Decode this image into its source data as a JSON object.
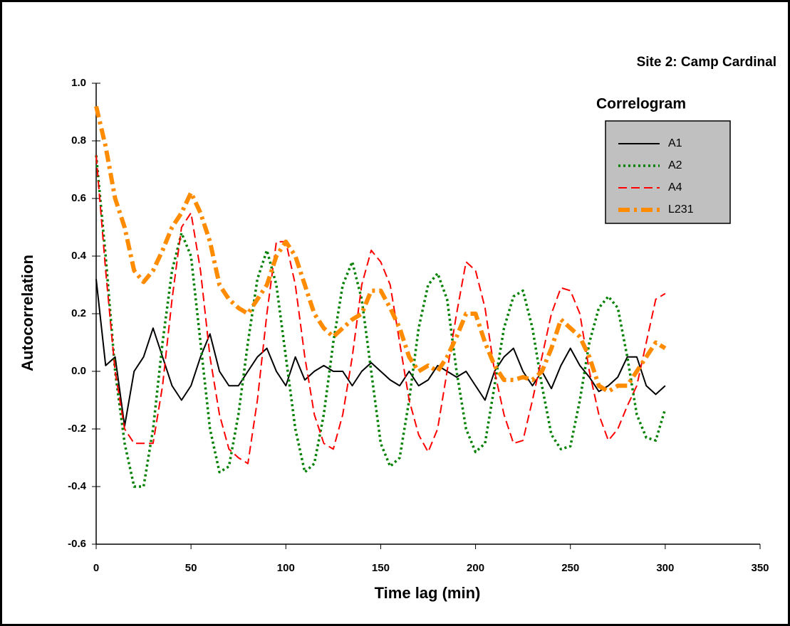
{
  "chart_data": {
    "type": "line",
    "title": "Site 2: Camp Cardinal",
    "legend_title": "Correlogram",
    "x_label": "Time lag (min)",
    "y_label": "Autocorrelation",
    "legend": "upper right",
    "xlim": [
      0,
      350
    ],
    "xticks": [
      0,
      50,
      100,
      150,
      200,
      250,
      300,
      350
    ],
    "ylim": [
      -0.6,
      1.0
    ],
    "yticks": [
      {
        "value": -0.6,
        "label": "-0.6"
      },
      {
        "value": -0.4,
        "label": "-0.4"
      },
      {
        "value": -0.2,
        "label": "-0.2"
      },
      {
        "value": 0,
        "label": "0.0"
      },
      {
        "value": 0.2,
        "label": "0.2"
      },
      {
        "value": 0.4,
        "label": "0.4"
      },
      {
        "value": 0.6,
        "label": "0.6"
      },
      {
        "value": 0.8,
        "label": "0.8"
      },
      {
        "value": 1.0,
        "label": "1.0"
      }
    ],
    "x": [
      0,
      5,
      10,
      15,
      20,
      25,
      30,
      35,
      40,
      45,
      50,
      55,
      60,
      65,
      70,
      75,
      80,
      85,
      90,
      95,
      100,
      105,
      110,
      115,
      120,
      125,
      130,
      135,
      140,
      145,
      150,
      155,
      160,
      165,
      170,
      175,
      180,
      185,
      190,
      195,
      200,
      205,
      210,
      215,
      220,
      225,
      230,
      235,
      240,
      245,
      250,
      255,
      260,
      265,
      270,
      275,
      280,
      285,
      290,
      295,
      300
    ],
    "series": [
      {
        "name": "A1",
        "color": "#000000",
        "dash": "solid",
        "values": [
          0.32,
          0.02,
          0.05,
          -0.19,
          0.0,
          0.05,
          0.15,
          0.05,
          -0.05,
          -0.1,
          -0.05,
          0.05,
          0.13,
          0.0,
          -0.05,
          -0.05,
          0.0,
          0.05,
          0.08,
          0.0,
          -0.05,
          0.05,
          -0.03,
          0.0,
          0.02,
          0.0,
          0.0,
          -0.05,
          0.0,
          0.03,
          0.0,
          -0.03,
          -0.05,
          0.0,
          -0.05,
          -0.03,
          0.02,
          0.0,
          -0.02,
          0.0,
          -0.05,
          -0.1,
          0.0,
          0.05,
          0.08,
          0.0,
          -0.05,
          0.0,
          -0.06,
          0.02,
          0.08,
          0.02,
          -0.02,
          -0.07,
          -0.05,
          -0.02,
          0.05,
          0.05,
          -0.05,
          -0.08,
          -0.05
        ]
      },
      {
        "name": "A2",
        "color": "#008000",
        "dash": "dotted",
        "values": [
          0.75,
          0.4,
          0.0,
          -0.25,
          -0.4,
          -0.4,
          -0.2,
          0.1,
          0.35,
          0.48,
          0.4,
          0.1,
          -0.2,
          -0.35,
          -0.33,
          -0.15,
          0.1,
          0.32,
          0.42,
          0.3,
          0.05,
          -0.2,
          -0.35,
          -0.32,
          -0.15,
          0.1,
          0.3,
          0.38,
          0.25,
          0.0,
          -0.25,
          -0.33,
          -0.3,
          -0.1,
          0.15,
          0.3,
          0.34,
          0.25,
          0.0,
          -0.2,
          -0.28,
          -0.25,
          -0.05,
          0.15,
          0.26,
          0.28,
          0.15,
          -0.05,
          -0.22,
          -0.27,
          -0.26,
          -0.1,
          0.1,
          0.22,
          0.26,
          0.22,
          0.05,
          -0.15,
          -0.23,
          -0.24,
          -0.13
        ]
      },
      {
        "name": "A4",
        "color": "#ff0000",
        "dash": "dashed",
        "values": [
          0.75,
          0.35,
          0.0,
          -0.2,
          -0.25,
          -0.25,
          -0.25,
          -0.05,
          0.25,
          0.5,
          0.55,
          0.35,
          0.05,
          -0.15,
          -0.27,
          -0.3,
          -0.32,
          -0.1,
          0.2,
          0.45,
          0.45,
          0.3,
          0.05,
          -0.15,
          -0.25,
          -0.27,
          -0.15,
          0.05,
          0.3,
          0.42,
          0.38,
          0.3,
          0.1,
          -0.1,
          -0.22,
          -0.28,
          -0.2,
          0.0,
          0.2,
          0.38,
          0.35,
          0.22,
          0.0,
          -0.15,
          -0.25,
          -0.24,
          -0.1,
          0.05,
          0.2,
          0.29,
          0.28,
          0.2,
          0.0,
          -0.15,
          -0.24,
          -0.2,
          -0.12,
          -0.05,
          0.1,
          0.25,
          0.27
        ]
      },
      {
        "name": "L231",
        "color": "#ff8c00",
        "dash": "dashdot",
        "values": [
          0.92,
          0.78,
          0.6,
          0.5,
          0.35,
          0.31,
          0.35,
          0.42,
          0.5,
          0.55,
          0.62,
          0.55,
          0.45,
          0.3,
          0.25,
          0.22,
          0.2,
          0.25,
          0.3,
          0.4,
          0.45,
          0.4,
          0.3,
          0.2,
          0.15,
          0.12,
          0.15,
          0.18,
          0.2,
          0.28,
          0.28,
          0.22,
          0.15,
          0.05,
          0.0,
          0.02,
          0.0,
          0.05,
          0.12,
          0.2,
          0.2,
          0.1,
          0.02,
          -0.03,
          -0.03,
          -0.02,
          -0.03,
          0.0,
          0.08,
          0.18,
          0.15,
          0.12,
          0.05,
          -0.05,
          -0.07,
          -0.05,
          -0.05,
          0.0,
          0.05,
          0.1,
          0.08
        ]
      }
    ]
  }
}
